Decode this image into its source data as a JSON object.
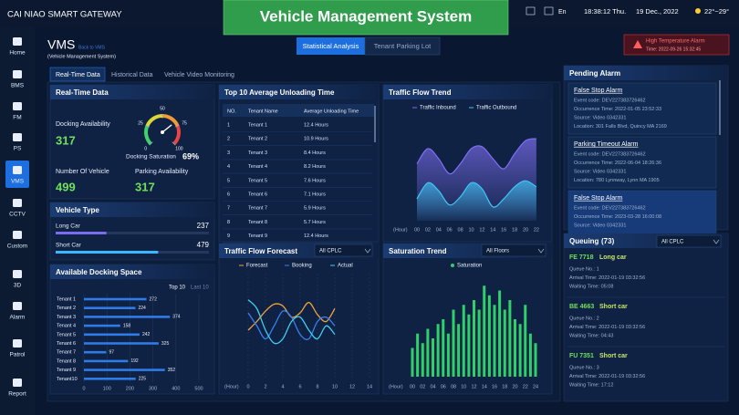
{
  "header": {
    "brand": "CAI NIAO SMART GATEWAY",
    "banner": "Vehicle Management System",
    "language": "En",
    "time": "18:38:12 Thu.",
    "date": "19 Dec., 2022",
    "weather": "22°~29°"
  },
  "sidebar": [
    "Home",
    "BMS",
    "FM",
    "PS",
    "VMS",
    "CCTV",
    "Custom",
    "3D",
    "Alarm",
    "Patrol",
    "Report"
  ],
  "page": {
    "title": "VMS",
    "back_link": "Back to VMS",
    "subtitle": "(Vehicle Management System)",
    "tabs": [
      "Statistical Analysis",
      "Tenant Parking Lot"
    ],
    "subtabs": [
      "Real-Time Data",
      "Historical Data",
      "Vehicle Video  Monitoring"
    ]
  },
  "alarm_banner": {
    "title": "High Temperature Alarm",
    "time": "Time: 2022-09-26 15:32:45"
  },
  "realtime": {
    "title": "Real-Time Data",
    "docking_availability": {
      "label": "Docking Availability",
      "value": 317
    },
    "saturation": {
      "label": "Docking Saturation",
      "value": 69,
      "value_label": "69%",
      "ticks": [
        0,
        25,
        50,
        75,
        100
      ]
    },
    "vehicles": {
      "label": "Number Of Vehicle",
      "value": 499
    },
    "parking": {
      "label": "Parking Availability",
      "value": 317
    }
  },
  "vehicle_type": {
    "title": "Vehicle Type",
    "items": [
      {
        "name": "Long Car",
        "value": 237
      },
      {
        "name": "Short Car",
        "value": 479
      }
    ]
  },
  "top10": {
    "title": "Top 10 Average Unloading Time",
    "columns": [
      "NO.",
      "Tenant Name",
      "Average Unloading Time"
    ],
    "rows": [
      [
        "1",
        "Tenant 1",
        "12.4 Hours"
      ],
      [
        "2",
        "Tenant 2",
        "10.9 Hours"
      ],
      [
        "3",
        "Tenant 3",
        "8.4 Hours"
      ],
      [
        "4",
        "Tenant 4",
        "8.2 Hours"
      ],
      [
        "5",
        "Tenant 5",
        "7.6 Hours"
      ],
      [
        "6",
        "Tenant 6",
        "7.1 Hours"
      ],
      [
        "7",
        "Tenant 7",
        "5.9 Hours"
      ],
      [
        "8",
        "Tenant 8",
        "5.7 Hours"
      ],
      [
        "9",
        "Tenant 9",
        "12.4 Hours"
      ]
    ]
  },
  "chart_data": [
    {
      "type": "hbar",
      "title": "Available Docking Space",
      "toggles": [
        "Top 10",
        "Last 10"
      ],
      "categories": [
        "Tenant 1",
        "Tenant 2",
        "Tenant 3",
        "Tenant 4",
        "Tenant 5",
        "Tenant 6",
        "Tenant 7",
        "Tenant 8",
        "Tenant 9",
        "Tenant10"
      ],
      "values": [
        272,
        224,
        374,
        158,
        242,
        325,
        97,
        192,
        352,
        225
      ],
      "color": "#2f7be8",
      "xlim": [
        0,
        500
      ],
      "xticks": [
        0,
        100,
        200,
        300,
        400,
        500
      ]
    },
    {
      "type": "area",
      "title": "Traffic Flow Trend",
      "xlabel": "(Hour)",
      "categories": [
        "00",
        "02",
        "04",
        "06",
        "08",
        "10",
        "12",
        "14",
        "16",
        "18",
        "20",
        "22"
      ],
      "series": [
        {
          "name": "Traffic Inbound",
          "color": "#7e6ff2",
          "values": [
            55,
            70,
            60,
            45,
            55,
            70,
            72,
            60,
            50,
            65,
            78,
            80
          ]
        },
        {
          "name": "Traffic Outbound",
          "color": "#3fc6f5",
          "values": [
            20,
            36,
            28,
            14,
            22,
            36,
            30,
            12,
            20,
            32,
            38,
            32
          ]
        }
      ],
      "ylim": [
        0,
        100
      ]
    },
    {
      "type": "line",
      "title": "Traffic Flow Forecast",
      "filter": "All CPLC",
      "xlabel": "(Hour)",
      "x": [
        0,
        1,
        2,
        3,
        4,
        5,
        6,
        7,
        8,
        9,
        10
      ],
      "series": [
        {
          "name": "Forecast",
          "color": "#f2a33a",
          "values": [
            40,
            50,
            62,
            70,
            68,
            55,
            60,
            72,
            58,
            50,
            65
          ]
        },
        {
          "name": "Booking",
          "color": "#3b7ef0",
          "values": [
            60,
            45,
            30,
            45,
            62,
            55,
            35,
            30,
            50,
            55,
            45
          ]
        },
        {
          "name": "Actual",
          "color": "#3fd0f0",
          "values": [
            75,
            65,
            40,
            25,
            30,
            50,
            55,
            40,
            30,
            45,
            35
          ]
        }
      ],
      "xlim": [
        0,
        14
      ],
      "xticks": [
        0,
        2,
        4,
        6,
        8,
        10,
        12,
        14
      ],
      "ylim": [
        0,
        100
      ],
      "grid": true
    },
    {
      "type": "bar",
      "title": "Saturation Trend",
      "filter": "All Floors",
      "xlabel": "(Hour)",
      "categories": [
        "00",
        null,
        "02",
        null,
        "04",
        null,
        "06",
        null,
        "08",
        null,
        "10",
        null,
        "12",
        null,
        "14",
        null,
        "16",
        null,
        "18",
        null,
        "20",
        null,
        "22",
        null,
        "24"
      ],
      "series": [
        {
          "name": "Saturation",
          "color": "#2fd06a",
          "values": [
            30,
            45,
            35,
            50,
            40,
            55,
            60,
            45,
            70,
            55,
            75,
            65,
            80,
            70,
            95,
            85,
            75,
            90,
            70,
            80,
            60,
            55,
            75,
            45,
            35
          ]
        }
      ],
      "ylim": [
        0,
        100
      ]
    }
  ],
  "pending_alarm": {
    "title": "Pending Alarm",
    "items": [
      {
        "title": "False Stop Alarm",
        "fields": [
          "Event code:  DEV227383726462",
          "Occurrence Time: 2022-01-05 23:52:33",
          "Source:  Video 0342331",
          "Location:  301 Falls Blvd, Quincy MA 2169"
        ]
      },
      {
        "title": "Parking Timeout Alarm",
        "fields": [
          "Event code:  DEV227383726462",
          "Occurrence Time: 2022-06-04 18:26:36",
          "Source:  Video 0342331",
          "Location:  780 Lynnway, Lynn MA 1905"
        ]
      },
      {
        "title": "False Stop Alarm",
        "fields": [
          "Event code:  DEV227383726462",
          "Occurrence Time: 2023-03-28 16:00:08",
          "Source:  Video 0342331"
        ]
      }
    ]
  },
  "queuing": {
    "title": "Queuing",
    "count": "(73)",
    "filter": "All CPLC",
    "items": [
      {
        "plate": "FE 7718",
        "type": "Long car",
        "fields": [
          "Queue No.:  1",
          "Arrival Time:  2022-01-19 03:32:56",
          "Waiting Time:  05:08"
        ]
      },
      {
        "plate": "BE 4663",
        "type": "Short car",
        "fields": [
          "Queue No.:  2",
          "Arrival Time:  2022-01-19 03:32:56",
          "Waiting Time:  04:43"
        ]
      },
      {
        "plate": "FU 7351",
        "type": "Short car",
        "fields": [
          "Queue No.:  3",
          "Arrival Time:  2022-01-19 03:32:56",
          "Waiting Time:  17:12"
        ]
      }
    ]
  }
}
